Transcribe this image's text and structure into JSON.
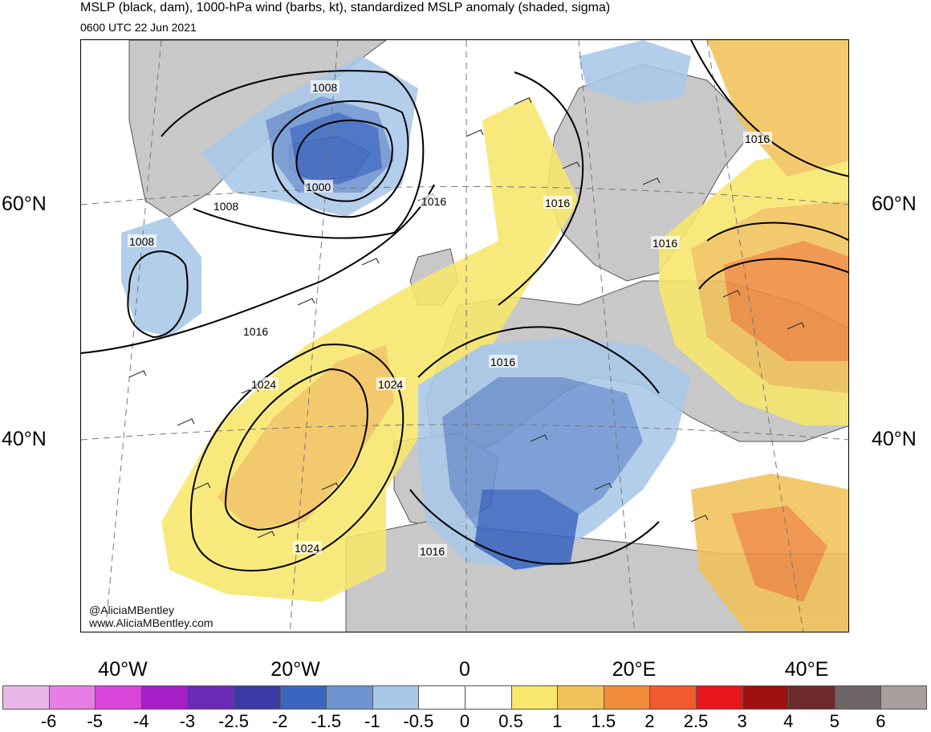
{
  "header": {
    "title": "MSLP (black, dam), 1000-hPa wind (barbs, kt), standardized MSLP anomaly (shaded, sigma)",
    "valid_time": "0600 UTC 22 Jun 2021"
  },
  "map": {
    "lat_labels": [
      "60°N",
      "40°N"
    ],
    "lon_labels": [
      "40°W",
      "20°W",
      "0",
      "20°E",
      "40°E"
    ],
    "isobar_labels": [
      "1008",
      "1000",
      "1008",
      "1008",
      "1016",
      "1016",
      "1016",
      "1016",
      "1016",
      "1016",
      "1024",
      "1024",
      "1024",
      "1016"
    ]
  },
  "credit": {
    "handle": "@AliciaMBentley",
    "url": "www.AliciaMBentley.com"
  },
  "colorbar": {
    "labels": [
      "-6",
      "-5",
      "-4",
      "-3",
      "-2.5",
      "-2",
      "-1.5",
      "-1",
      "-0.5",
      "0",
      "0.5",
      "1",
      "1.5",
      "2",
      "2.5",
      "3",
      "4",
      "5",
      "6"
    ],
    "colors": [
      "#e8b9e8",
      "#e67ee6",
      "#d946d9",
      "#a61fc9",
      "#6a2ab3",
      "#3a3aa6",
      "#3a66bf",
      "#6e94d1",
      "#a9c8e8",
      "#ffffff",
      "#ffffff",
      "#f8e76c",
      "#f2c25a",
      "#f08c3c",
      "#f05a2c",
      "#e8161a",
      "#a01010",
      "#6e2a2a",
      "#6e6666",
      "#a89e9e"
    ]
  }
}
